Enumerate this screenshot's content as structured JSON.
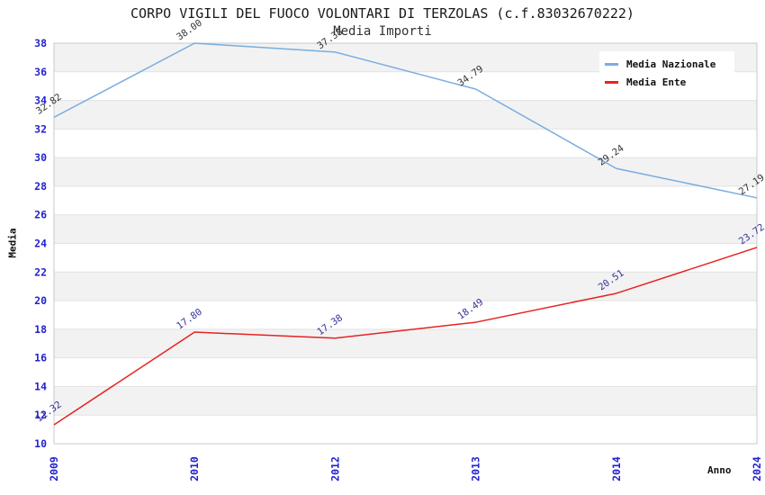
{
  "chart_data": {
    "type": "line",
    "title": "CORPO VIGILI DEL FUOCO VOLONTARI DI TERZOLAS (c.f.83032670222)",
    "subtitle": "Media Importi",
    "xlabel": "Anno",
    "ylabel": "Media",
    "categories": [
      "2009",
      "2010",
      "2012",
      "2013",
      "2014",
      "2024"
    ],
    "series": [
      {
        "name": "Media Nazionale",
        "color": "#79ade1",
        "label_color": "#333333",
        "values": [
          32.82,
          38.0,
          37.38,
          34.79,
          29.24,
          27.19
        ]
      },
      {
        "name": "Media Ente",
        "color": "#e72222",
        "label_color": "#333399",
        "values": [
          11.32,
          17.8,
          17.38,
          18.49,
          20.51,
          23.72
        ]
      }
    ],
    "ylim": [
      10,
      38
    ],
    "ytick_step": 2,
    "grid": "horizontal-bands",
    "legend_position": "top-right",
    "colors": {
      "band": "#f2f2f2",
      "gridline": "#e2e2e2",
      "plot_border": "#c8c8c8",
      "tick_labels": "#2222cf"
    }
  }
}
